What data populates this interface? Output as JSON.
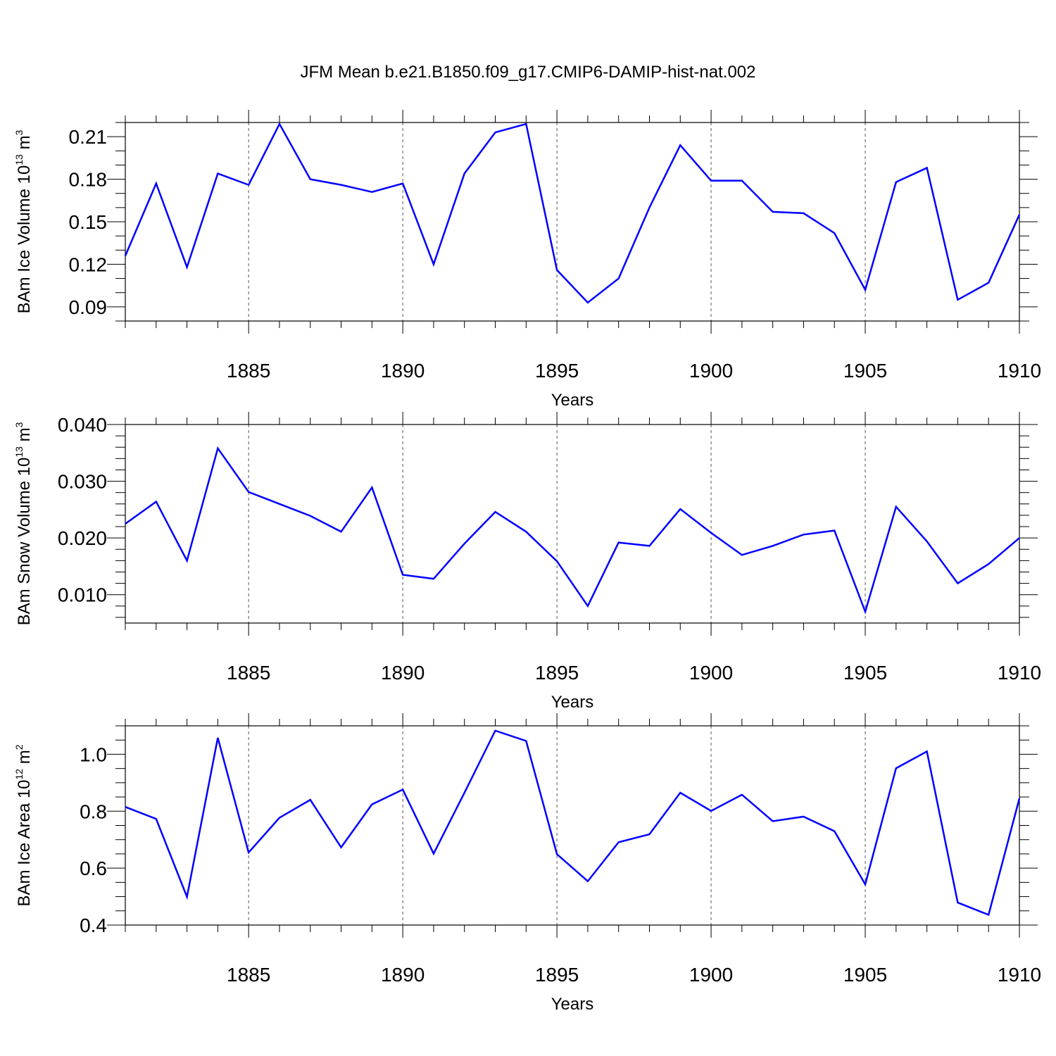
{
  "title": "JFM Mean b.e21.B1850.f09_g17.CMIP6-DAMIP-hist-nat.002",
  "colors": {
    "line": "#0000ff",
    "axis": "#000000",
    "grid": "#555555"
  },
  "chart_data": [
    {
      "type": "line",
      "ylabel": {
        "text": "BAm Ice Volume 10",
        "exp": "13",
        "unit": " m",
        "unit_exp": "3"
      },
      "xlabel": "Years",
      "xlim": [
        1881,
        1910
      ],
      "ylim": [
        0.08,
        0.22
      ],
      "yticks": [
        0.09,
        0.12,
        0.15,
        0.18,
        0.21
      ],
      "ytick_labels": [
        "0.09",
        "0.12",
        "0.15",
        "0.18",
        "0.21"
      ],
      "yminor_step": 0.01,
      "xticks": [
        1885,
        1890,
        1895,
        1900,
        1905,
        1910
      ],
      "xtick_labels": [
        "1885",
        "1890",
        "1895",
        "1900",
        "1905",
        "1910"
      ],
      "vgrid": [
        1885,
        1890,
        1895,
        1900,
        1905
      ],
      "x": [
        1881,
        1882,
        1883,
        1884,
        1885,
        1886,
        1887,
        1888,
        1889,
        1890,
        1891,
        1892,
        1893,
        1894,
        1895,
        1896,
        1897,
        1898,
        1899,
        1900,
        1901,
        1902,
        1903,
        1904,
        1905,
        1906,
        1907,
        1908,
        1909,
        1910
      ],
      "series": [
        {
          "values": [
            0.126,
            0.177,
            0.118,
            0.184,
            0.176,
            0.219,
            0.18,
            0.176,
            0.171,
            0.177,
            0.12,
            0.184,
            0.213,
            0.219,
            0.116,
            0.093,
            0.11,
            0.16,
            0.204,
            0.179,
            0.179,
            0.157,
            0.156,
            0.142,
            0.102,
            0.178,
            0.188,
            0.095,
            0.107,
            0.155
          ]
        }
      ]
    },
    {
      "type": "line",
      "ylabel": {
        "text": "BAm Snow Volume 10",
        "exp": "13",
        "unit": " m",
        "unit_exp": "3"
      },
      "xlabel": "Years",
      "xlim": [
        1881,
        1910
      ],
      "ylim": [
        0.005,
        0.04
      ],
      "yticks": [
        0.01,
        0.02,
        0.03,
        0.04
      ],
      "ytick_labels": [
        "0.010",
        "0.020",
        "0.030",
        "0.040"
      ],
      "yminor_step": 0.002,
      "xticks": [
        1885,
        1890,
        1895,
        1900,
        1905,
        1910
      ],
      "xtick_labels": [
        "1885",
        "1890",
        "1895",
        "1900",
        "1905",
        "1910"
      ],
      "vgrid": [
        1885,
        1890,
        1895,
        1900,
        1905
      ],
      "x": [
        1881,
        1882,
        1883,
        1884,
        1885,
        1886,
        1887,
        1888,
        1889,
        1890,
        1891,
        1892,
        1893,
        1894,
        1895,
        1896,
        1897,
        1898,
        1899,
        1900,
        1901,
        1902,
        1903,
        1904,
        1905,
        1906,
        1907,
        1908,
        1909,
        1910
      ],
      "series": [
        {
          "values": [
            0.0225,
            0.0264,
            0.016,
            0.0358,
            0.0281,
            0.026,
            0.0239,
            0.0211,
            0.0289,
            0.0135,
            0.0128,
            0.019,
            0.0246,
            0.0211,
            0.0159,
            0.008,
            0.0192,
            0.0186,
            0.0251,
            0.0209,
            0.017,
            0.0186,
            0.0206,
            0.0213,
            0.007,
            0.0255,
            0.0194,
            0.012,
            0.0154,
            0.02
          ]
        }
      ]
    },
    {
      "type": "line",
      "ylabel": {
        "text": "BAm Ice Area 10",
        "exp": "12",
        "unit": " m",
        "unit_exp": "2"
      },
      "xlabel": "Years",
      "xlim": [
        1881,
        1910
      ],
      "ylim": [
        0.4,
        1.1
      ],
      "yticks": [
        0.4,
        0.6,
        0.8,
        1.0
      ],
      "ytick_labels": [
        "0.4",
        "0.6",
        "0.8",
        "1.0"
      ],
      "yminor_step": 0.05,
      "xticks": [
        1885,
        1890,
        1895,
        1900,
        1905,
        1910
      ],
      "xtick_labels": [
        "1885",
        "1890",
        "1895",
        "1900",
        "1905",
        "1910"
      ],
      "vgrid": [
        1885,
        1890,
        1895,
        1900,
        1905
      ],
      "x": [
        1881,
        1882,
        1883,
        1884,
        1885,
        1886,
        1887,
        1888,
        1889,
        1890,
        1891,
        1892,
        1893,
        1894,
        1895,
        1896,
        1897,
        1898,
        1899,
        1900,
        1901,
        1902,
        1903,
        1904,
        1905,
        1906,
        1907,
        1908,
        1909,
        1910
      ],
      "series": [
        {
          "values": [
            0.815,
            0.773,
            0.499,
            1.058,
            0.655,
            0.777,
            0.84,
            0.673,
            0.824,
            0.876,
            0.651,
            0.865,
            1.083,
            1.047,
            0.649,
            0.554,
            0.691,
            0.719,
            0.865,
            0.801,
            0.858,
            0.765,
            0.781,
            0.73,
            0.543,
            0.951,
            1.01,
            0.479,
            0.436,
            0.845
          ]
        }
      ]
    }
  ]
}
